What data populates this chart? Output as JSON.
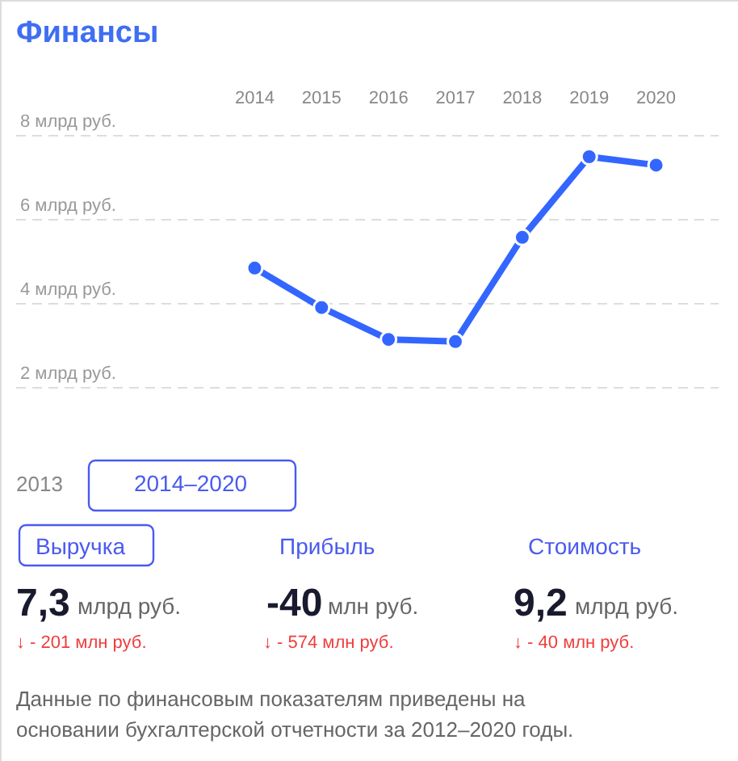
{
  "chart_data": {
    "type": "line",
    "title": "Финансы",
    "categories": [
      "2014",
      "2015",
      "2016",
      "2017",
      "2018",
      "2019",
      "2020"
    ],
    "series": [
      {
        "color": "#3366ff",
        "values": [
          4.85,
          3.91,
          3.15,
          3.1,
          5.58,
          7.5,
          7.3
        ]
      }
    ],
    "ylim": [
      2,
      8
    ],
    "yticks": [
      {
        "value": 2,
        "label": "2 млрд руб."
      },
      {
        "value": 4,
        "label": "4 млрд руб."
      },
      {
        "value": 6,
        "label": "6 млрд руб."
      },
      {
        "value": 8,
        "label": "8 млрд руб."
      }
    ],
    "grid": "y",
    "marker": "circle",
    "line_style": "solid",
    "annotations": [
      "2013",
      "2014–2020",
      "Выручка",
      "Прибыль",
      "Стоимость",
      "7,3",
      "млрд руб.",
      "-40",
      "млн руб.",
      "9,2",
      "млрд руб.",
      "↓ - 201 млн руб.",
      "↓ - 574 млн руб.",
      "↓ - 40 млн руб.",
      "Данные по финансовым показателям приведены на",
      "основании бухгалтерской отчетности за 2012–2020 годы."
    ]
  }
}
